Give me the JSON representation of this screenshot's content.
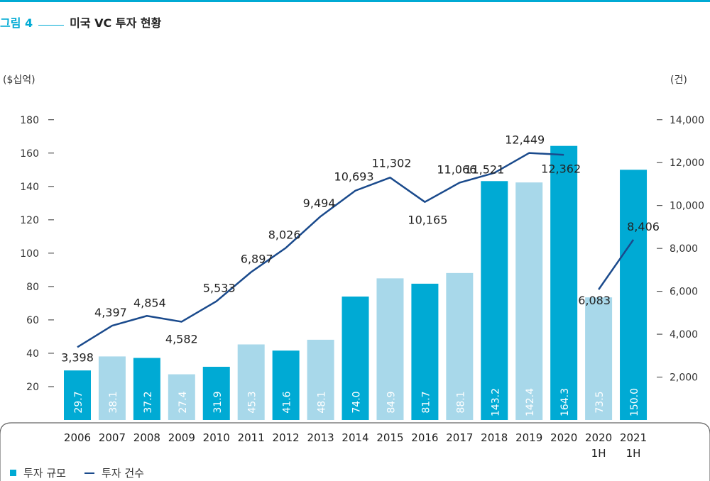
{
  "figure": {
    "number": "그림 4",
    "title": "미국 VC 투자 현황"
  },
  "chart_data": {
    "type": "bar+line",
    "title": "미국 VC 투자 현황",
    "categories": [
      "2006",
      "2007",
      "2008",
      "2009",
      "2010",
      "2011",
      "2012",
      "2013",
      "2014",
      "2015",
      "2016",
      "2017",
      "2018",
      "2019",
      "2020",
      "2020\n1H",
      "2021\n1H"
    ],
    "left_axis": {
      "unit": "($십억)",
      "ticks": [
        20,
        40,
        60,
        80,
        100,
        120,
        140,
        160,
        180
      ],
      "range": [
        0,
        185
      ]
    },
    "right_axis": {
      "unit": "(건)",
      "ticks": [
        "2,000",
        "4,000",
        "6,000",
        "8,000",
        "10,000",
        "12,000",
        "14,000"
      ],
      "tick_values": [
        2000,
        4000,
        6000,
        8000,
        10000,
        12000,
        14000
      ],
      "range": [
        0,
        14389
      ]
    },
    "bars": {
      "name": "투자 규모",
      "values": [
        29.7,
        38.1,
        37.2,
        27.4,
        31.9,
        45.3,
        41.6,
        48.1,
        74.0,
        84.9,
        81.7,
        88.1,
        143.2,
        142.4,
        164.3,
        73.5,
        150.0
      ],
      "labels": [
        "29.7",
        "38.1",
        "37.2",
        "27.4",
        "31.9",
        "45.3",
        "41.6",
        "48.1",
        "74.0",
        "84.9",
        "81.7",
        "88.1",
        "143.2",
        "142.4",
        "164.3",
        "73.5",
        "150.0"
      ],
      "colors": [
        "#00aad4",
        "#a8d8ea",
        "#00aad4",
        "#a8d8ea",
        "#00aad4",
        "#a8d8ea",
        "#00aad4",
        "#a8d8ea",
        "#00aad4",
        "#a8d8ea",
        "#00aad4",
        "#a8d8ea",
        "#00aad4",
        "#a8d8ea",
        "#00aad4",
        "#a8d8ea",
        "#00aad4"
      ]
    },
    "line": {
      "name": "투자 건수",
      "color": "#1a4a8c",
      "segments": [
        {
          "values": [
            3398,
            4397,
            4854,
            4582,
            5533,
            6897,
            8026,
            9494,
            10693,
            11302,
            10165,
            11066,
            11521,
            12449,
            12362
          ],
          "labels": [
            "3,398",
            "4,397",
            "4,854",
            "4,582",
            "5,533",
            "6,897",
            "8,026",
            "9,494",
            "10,693",
            "11,302",
            "10,165",
            "11,066",
            "11,521",
            "12,449",
            "12,362"
          ],
          "start": 0
        },
        {
          "values": [
            6083,
            8406
          ],
          "labels": [
            "6,083",
            "8,406"
          ],
          "start": 15
        }
      ]
    },
    "legend": {
      "position": "bottom-left",
      "items": [
        "투자 규모",
        "투자 건수"
      ]
    },
    "grid": false
  }
}
